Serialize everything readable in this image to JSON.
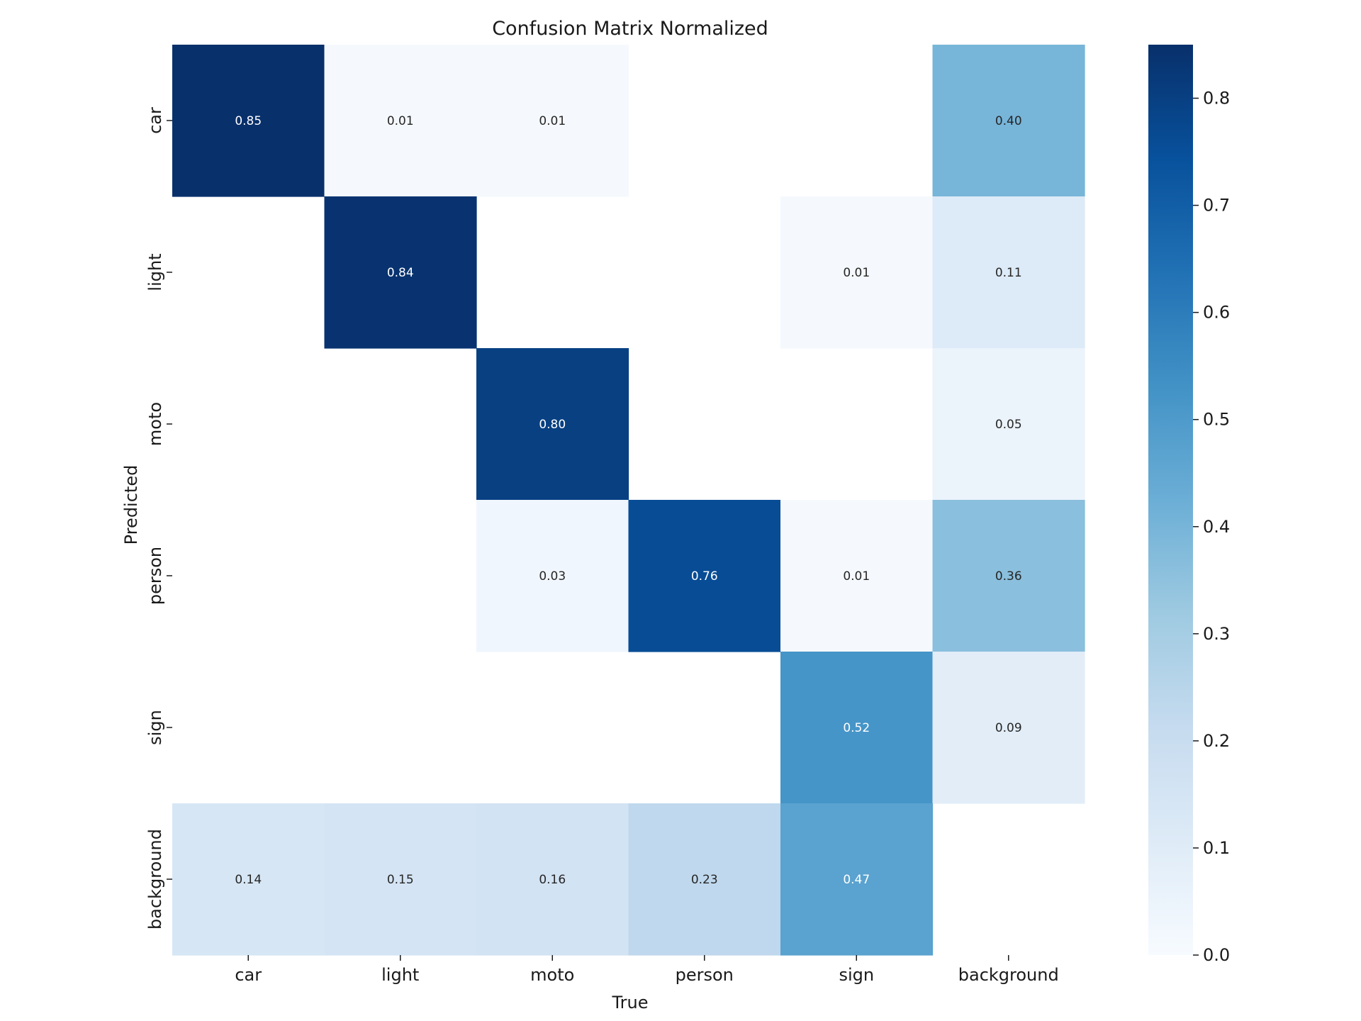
{
  "chart_data": {
    "type": "heatmap",
    "title": "Confusion Matrix Normalized",
    "xlabel": "True",
    "ylabel": "Predicted",
    "x_categories": [
      "car",
      "light",
      "moto",
      "person",
      "sign",
      "background"
    ],
    "y_categories": [
      "car",
      "light",
      "moto",
      "person",
      "sign",
      "background"
    ],
    "values": [
      [
        0.85,
        0.01,
        0.01,
        null,
        null,
        0.4
      ],
      [
        null,
        0.84,
        null,
        null,
        0.01,
        0.11
      ],
      [
        null,
        null,
        0.8,
        null,
        null,
        0.05
      ],
      [
        null,
        null,
        0.03,
        0.76,
        0.01,
        0.36
      ],
      [
        null,
        null,
        null,
        null,
        0.52,
        0.09
      ],
      [
        0.14,
        0.15,
        0.16,
        0.23,
        0.47,
        null
      ]
    ],
    "labels": [
      [
        "0.85",
        "0.01",
        "0.01",
        "",
        "",
        "0.40"
      ],
      [
        "",
        "0.84",
        "",
        "",
        "0.01",
        "0.11"
      ],
      [
        "",
        "",
        "0.80",
        "",
        "",
        "0.05"
      ],
      [
        "",
        "",
        "0.03",
        "0.76",
        "0.01",
        "0.36"
      ],
      [
        "",
        "",
        "",
        "",
        "0.52",
        "0.09"
      ],
      [
        "0.14",
        "0.15",
        "0.16",
        "0.23",
        "0.47",
        ""
      ]
    ],
    "colorbar": {
      "range": [
        0,
        0.85
      ],
      "ticks": [
        0.0,
        0.1,
        0.2,
        0.3,
        0.4,
        0.5,
        0.6,
        0.7,
        0.8
      ],
      "tick_labels": [
        "0.0",
        "0.1",
        "0.2",
        "0.3",
        "0.4",
        "0.5",
        "0.6",
        "0.7",
        "0.8"
      ]
    },
    "colormap": "Blues",
    "colors": {
      "text_light": "#ffffff",
      "text_dark": "#262626",
      "axis": "#1a1a1a"
    }
  }
}
